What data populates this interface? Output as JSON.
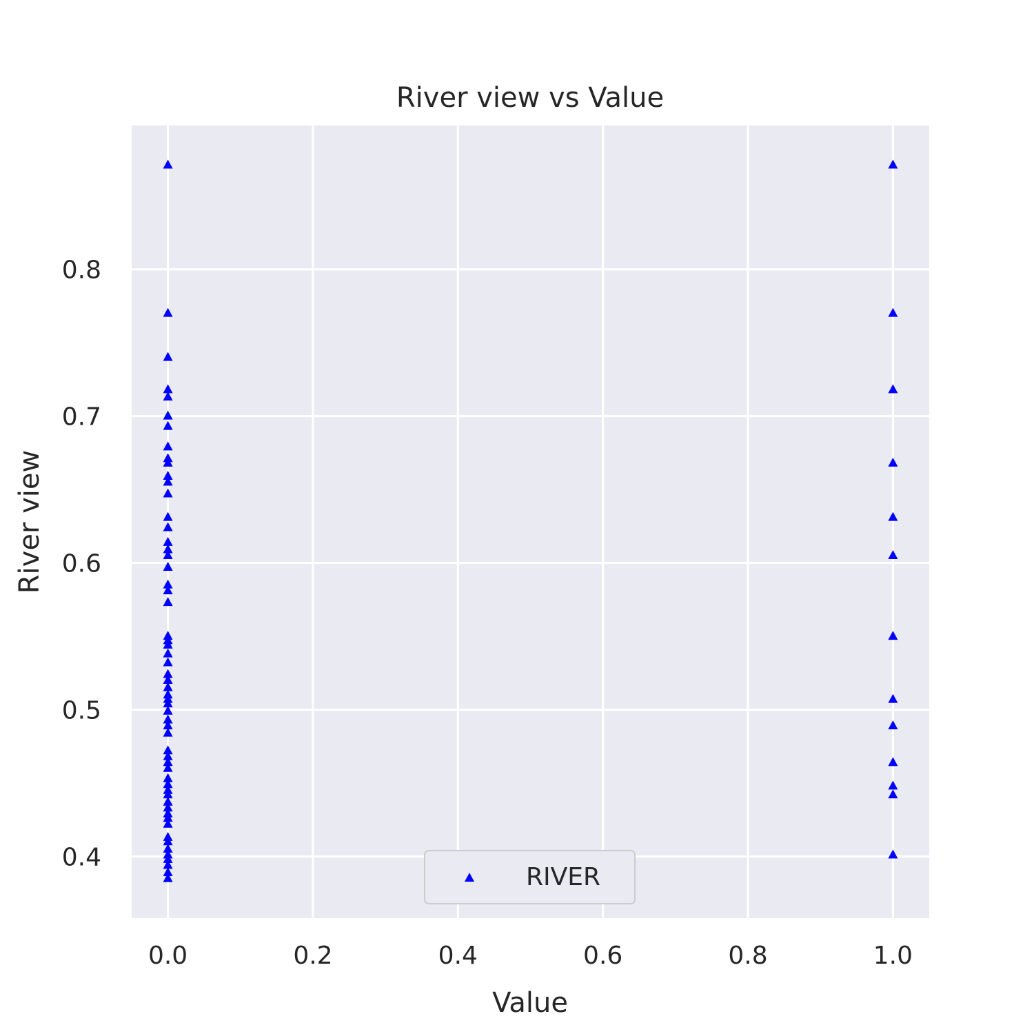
{
  "chart_data": {
    "type": "scatter",
    "title": "River view vs Value",
    "xlabel": "Value",
    "ylabel": "River view",
    "xlim": [
      -0.05,
      1.05
    ],
    "ylim": [
      0.358,
      0.898
    ],
    "xticks": [
      "0.0",
      "0.2",
      "0.4",
      "0.6",
      "0.8",
      "1.0"
    ],
    "yticks": [
      "0.4",
      "0.5",
      "0.6",
      "0.7",
      "0.8"
    ],
    "grid": true,
    "legend_position": "lower center",
    "colors": {
      "marker": "#0000ff",
      "plot_bg": "#eaeaf2",
      "grid": "#ffffff",
      "text": "#262626"
    },
    "marker": "triangle-up",
    "series": [
      {
        "name": "RIVER",
        "points": [
          [
            0,
            0.871
          ],
          [
            0,
            0.77
          ],
          [
            0,
            0.74
          ],
          [
            0,
            0.718
          ],
          [
            0,
            0.713
          ],
          [
            0,
            0.7
          ],
          [
            0,
            0.693
          ],
          [
            0,
            0.679
          ],
          [
            0,
            0.671
          ],
          [
            0,
            0.668
          ],
          [
            0,
            0.659
          ],
          [
            0,
            0.655
          ],
          [
            0,
            0.647
          ],
          [
            0,
            0.631
          ],
          [
            0,
            0.624
          ],
          [
            0,
            0.614
          ],
          [
            0,
            0.609
          ],
          [
            0,
            0.605
          ],
          [
            0,
            0.597
          ],
          [
            0,
            0.585
          ],
          [
            0,
            0.581
          ],
          [
            0,
            0.573
          ],
          [
            0,
            0.55
          ],
          [
            0,
            0.547
          ],
          [
            0,
            0.544
          ],
          [
            0,
            0.538
          ],
          [
            0,
            0.532
          ],
          [
            0,
            0.524
          ],
          [
            0,
            0.52
          ],
          [
            0,
            0.515
          ],
          [
            0,
            0.51
          ],
          [
            0,
            0.507
          ],
          [
            0,
            0.504
          ],
          [
            0,
            0.499
          ],
          [
            0,
            0.493
          ],
          [
            0,
            0.489
          ],
          [
            0,
            0.484
          ],
          [
            0,
            0.472
          ],
          [
            0,
            0.468
          ],
          [
            0,
            0.464
          ],
          [
            0,
            0.46
          ],
          [
            0,
            0.453
          ],
          [
            0,
            0.449
          ],
          [
            0,
            0.445
          ],
          [
            0,
            0.442
          ],
          [
            0,
            0.437
          ],
          [
            0,
            0.433
          ],
          [
            0,
            0.429
          ],
          [
            0,
            0.426
          ],
          [
            0,
            0.422
          ],
          [
            0,
            0.413
          ],
          [
            0,
            0.41
          ],
          [
            0,
            0.405
          ],
          [
            0,
            0.401
          ],
          [
            0,
            0.398
          ],
          [
            0,
            0.394
          ],
          [
            0,
            0.389
          ],
          [
            0,
            0.385
          ],
          [
            1,
            0.871
          ],
          [
            1,
            0.77
          ],
          [
            1,
            0.718
          ],
          [
            1,
            0.668
          ],
          [
            1,
            0.631
          ],
          [
            1,
            0.605
          ],
          [
            1,
            0.55
          ],
          [
            1,
            0.507
          ],
          [
            1,
            0.489
          ],
          [
            1,
            0.464
          ],
          [
            1,
            0.448
          ],
          [
            1,
            0.442
          ],
          [
            1,
            0.401
          ]
        ]
      }
    ]
  }
}
